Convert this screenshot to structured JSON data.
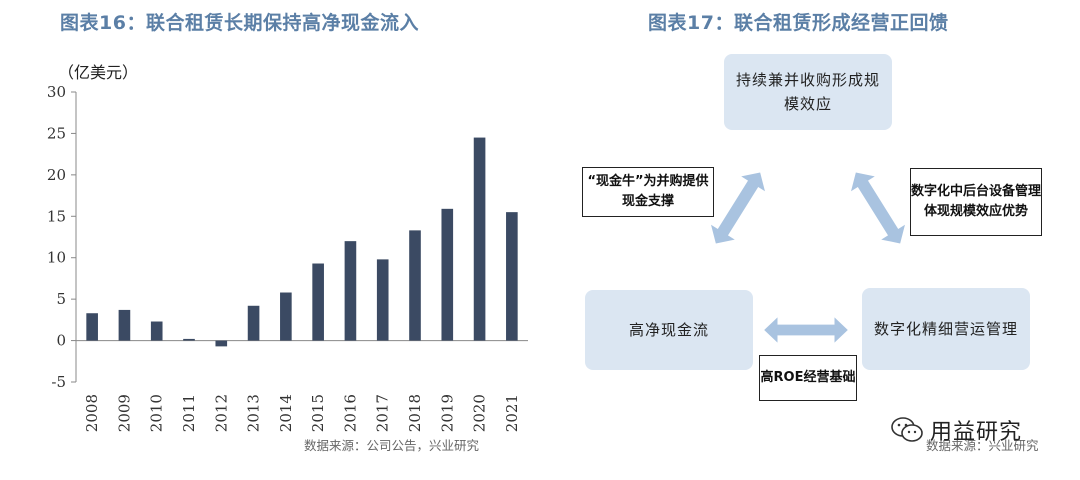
{
  "left_figure": {
    "title": "图表16：联合租赁长期保持高净现金流入",
    "unit": "（亿美元）",
    "source": "数据来源：公司公告，兴业研究"
  },
  "right_figure": {
    "title": "图表17：联合租赁形成经营正回馈",
    "top_box": "持续兼并收购形成规模效应",
    "left_box": "高净现金流",
    "right_box": "数字化精细营运管理",
    "note_left": "“现金牛”为并购提供现金支撑",
    "note_right": "数字化中后台设备管理体现规模效应优势",
    "note_bottom": "高ROE经营基础",
    "source": "数据来源：兴业研究"
  },
  "watermark": {
    "text": "用益研究",
    "icon": "wechat-icon"
  },
  "colors": {
    "bar": "#3b4a63",
    "axis": "#888888",
    "title": "#5b7fa6",
    "diagram_box": "#dbe6f2",
    "arrow": "#a9c3e0"
  },
  "chart_data": {
    "type": "bar",
    "categories": [
      "2008",
      "2009",
      "2010",
      "2011",
      "2012",
      "2013",
      "2014",
      "2015",
      "2016",
      "2017",
      "2018",
      "2019",
      "2020",
      "2021"
    ],
    "values": [
      3.3,
      3.7,
      2.3,
      0.2,
      -0.7,
      4.2,
      5.8,
      9.3,
      12.0,
      9.8,
      13.3,
      15.9,
      24.5,
      15.5
    ],
    "ylim": [
      -5,
      30
    ],
    "yticks": [
      -5,
      0,
      5,
      10,
      15,
      20,
      25,
      30
    ],
    "grid": false
  }
}
